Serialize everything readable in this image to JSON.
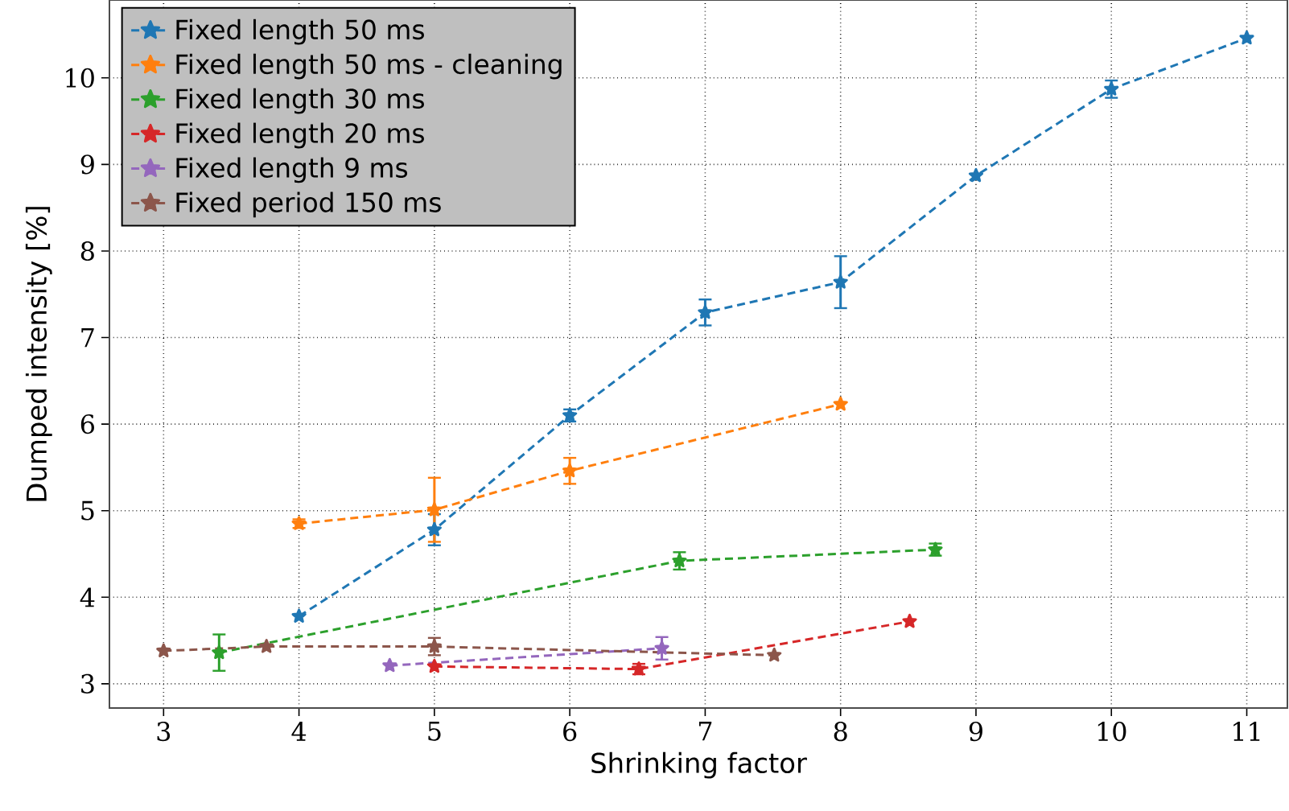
{
  "chart_data": {
    "type": "line",
    "xlabel": "Shrinking factor",
    "ylabel": "Dumped intensity [%]",
    "xlim": [
      2.6,
      11.3
    ],
    "ylim": [
      2.72,
      10.9
    ],
    "xticks": [
      3,
      4,
      5,
      6,
      7,
      8,
      9,
      10,
      11
    ],
    "yticks": [
      3,
      4,
      5,
      6,
      7,
      8,
      9,
      10
    ],
    "grid": true,
    "legend": "top left",
    "marker": "star",
    "line_style": "dashed",
    "series": [
      {
        "name": "Fixed length 50 ms",
        "color": "#1f77b4",
        "x": [
          4,
          5,
          6,
          7,
          8,
          9,
          10,
          11
        ],
        "values": [
          3.78,
          4.78,
          6.1,
          7.29,
          7.64,
          8.87,
          9.87,
          10.46
        ],
        "errors": [
          null,
          0.18,
          0.07,
          0.15,
          0.3,
          null,
          0.1,
          null
        ]
      },
      {
        "name": "Fixed length 50 ms - cleaning",
        "color": "#ff7f0e",
        "x": [
          4,
          5,
          6,
          8
        ],
        "values": [
          4.85,
          5.01,
          5.46,
          6.23
        ],
        "errors": [
          0.05,
          0.37,
          0.15,
          null
        ]
      },
      {
        "name": "Fixed length 30 ms",
        "color": "#2ca02c",
        "x": [
          3.41,
          6.81,
          8.7
        ],
        "values": [
          3.36,
          4.42,
          4.55
        ],
        "errors": [
          0.21,
          0.1,
          0.07
        ]
      },
      {
        "name": "Fixed length 20 ms",
        "color": "#d62728",
        "x": [
          5,
          6.51,
          8.51
        ],
        "values": [
          3.2,
          3.17,
          3.72
        ],
        "errors": [
          null,
          0.06,
          null
        ]
      },
      {
        "name": "Fixed length 9 ms",
        "color": "#9467bd",
        "x": [
          4.67,
          6.68
        ],
        "values": [
          3.21,
          3.41
        ],
        "errors": [
          null,
          0.13
        ]
      },
      {
        "name": "Fixed period 150 ms",
        "color": "#8c564b",
        "x": [
          3,
          3.76,
          5,
          7.51
        ],
        "values": [
          3.38,
          3.43,
          3.43,
          3.33
        ],
        "errors": [
          null,
          null,
          0.1,
          null
        ]
      }
    ]
  }
}
